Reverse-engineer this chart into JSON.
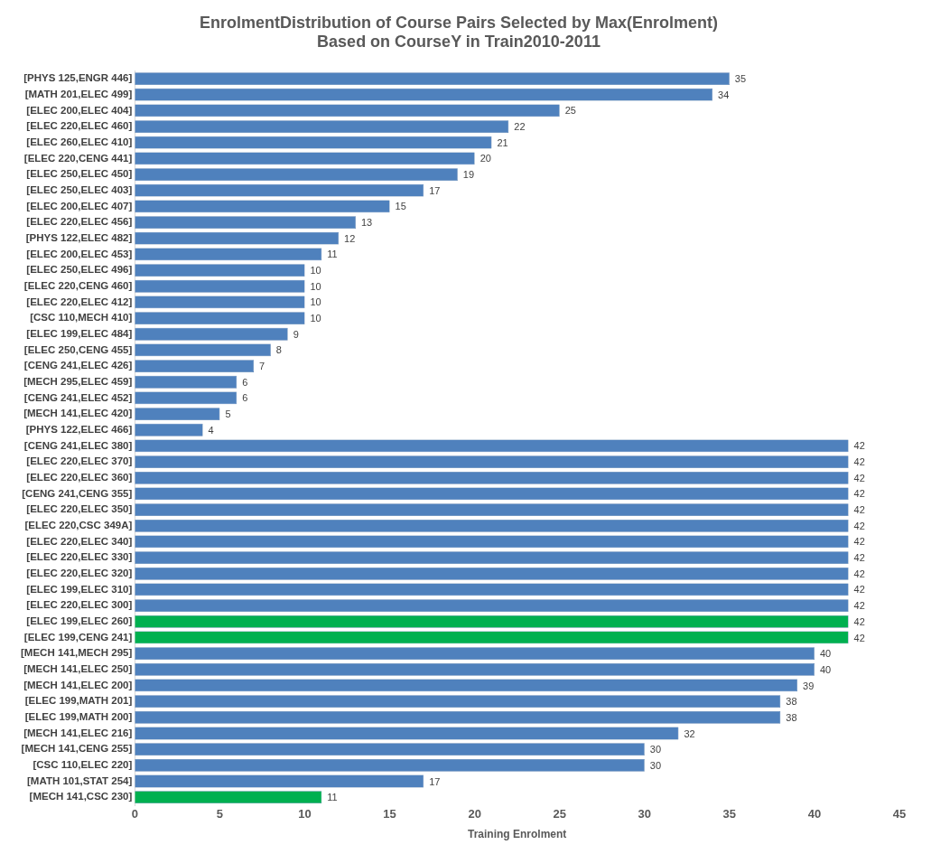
{
  "chart_data": {
    "type": "bar",
    "orientation": "horizontal",
    "title": "EnrolmentDistribution of Course Pairs Selected by Max(Enrolment)\nBased on CourseY in Train2010-2011",
    "xlabel": "Training Enrolment",
    "categories": [
      "[PHYS 125,ENGR 446]",
      "[MATH 201,ELEC 499]",
      "[ELEC 200,ELEC 404]",
      "[ELEC 220,ELEC 460]",
      "[ELEC 260,ELEC 410]",
      "[ELEC 220,CENG 441]",
      "[ELEC 250,ELEC 450]",
      "[ELEC 250,ELEC 403]",
      "[ELEC 200,ELEC 407]",
      "[ELEC 220,ELEC 456]",
      "[PHYS 122,ELEC 482]",
      "[ELEC 200,ELEC 453]",
      "[ELEC 250,ELEC 496]",
      "[ELEC 220,CENG 460]",
      "[ELEC 220,ELEC 412]",
      "[CSC 110,MECH 410]",
      "[ELEC 199,ELEC 484]",
      "[ELEC 250,CENG 455]",
      "[CENG 241,ELEC 426]",
      "[MECH 295,ELEC 459]",
      "[CENG 241,ELEC 452]",
      "[MECH 141,ELEC 420]",
      "[PHYS 122,ELEC 466]",
      "[CENG 241,ELEC 380]",
      "[ELEC 220,ELEC 370]",
      "[ELEC 220,ELEC 360]",
      "[CENG 241,CENG 355]",
      "[ELEC 220,ELEC 350]",
      "[ELEC 220,CSC 349A]",
      "[ELEC 220,ELEC 340]",
      "[ELEC 220,ELEC 330]",
      "[ELEC 220,ELEC 320]",
      "[ELEC 199,ELEC 310]",
      "[ELEC 220,ELEC 300]",
      "[ELEC 199,ELEC 260]",
      "[ELEC 199,CENG 241]",
      "[MECH 141,MECH 295]",
      "[MECH 141,ELEC 250]",
      "[MECH 141,ELEC 200]",
      "[ELEC 199,MATH 201]",
      "[ELEC 199,MATH 200]",
      "[MECH 141,ELEC 216]",
      "[MECH 141,CENG 255]",
      "[CSC 110,ELEC 220]",
      "[MATH 101,STAT 254]",
      "[MECH 141,CSC 230]"
    ],
    "values": [
      35,
      34,
      25,
      22,
      21,
      20,
      19,
      17,
      15,
      13,
      12,
      11,
      10,
      10,
      10,
      10,
      9,
      8,
      7,
      6,
      6,
      5,
      4,
      42,
      42,
      42,
      42,
      42,
      42,
      42,
      42,
      42,
      42,
      42,
      42,
      42,
      40,
      40,
      39,
      38,
      38,
      32,
      30,
      30,
      17,
      11
    ],
    "colors": [
      "#4f81bd",
      "#4f81bd",
      "#4f81bd",
      "#4f81bd",
      "#4f81bd",
      "#4f81bd",
      "#4f81bd",
      "#4f81bd",
      "#4f81bd",
      "#4f81bd",
      "#4f81bd",
      "#4f81bd",
      "#4f81bd",
      "#4f81bd",
      "#4f81bd",
      "#4f81bd",
      "#4f81bd",
      "#4f81bd",
      "#4f81bd",
      "#4f81bd",
      "#4f81bd",
      "#4f81bd",
      "#4f81bd",
      "#4f81bd",
      "#4f81bd",
      "#4f81bd",
      "#4f81bd",
      "#4f81bd",
      "#4f81bd",
      "#4f81bd",
      "#4f81bd",
      "#4f81bd",
      "#4f81bd",
      "#4f81bd",
      "#00b050",
      "#00b050",
      "#4f81bd",
      "#4f81bd",
      "#4f81bd",
      "#4f81bd",
      "#4f81bd",
      "#4f81bd",
      "#4f81bd",
      "#4f81bd",
      "#4f81bd",
      "#00b050"
    ],
    "xlim": [
      0,
      45
    ],
    "xticks": [
      0,
      5,
      10,
      15,
      20,
      25,
      30,
      35,
      40,
      45
    ],
    "data_labels": true,
    "grid": false,
    "legend": false
  }
}
